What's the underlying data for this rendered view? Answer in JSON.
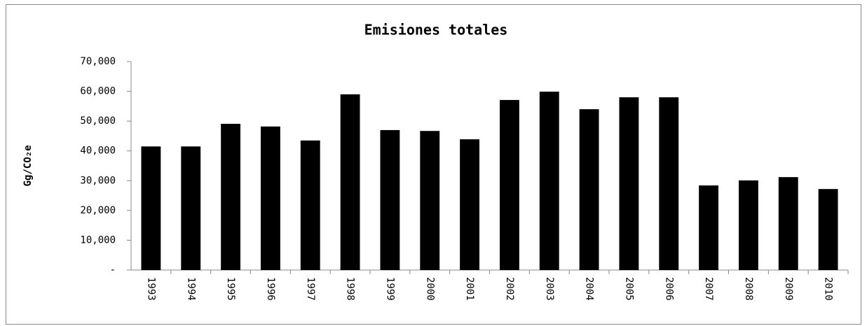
{
  "chart_data": {
    "type": "bar",
    "title": "Emisiones totales",
    "y_label": "Gg/CO₂e",
    "categories": [
      "1993",
      "1994",
      "1995",
      "1996",
      "1997",
      "1998",
      "1999",
      "2000",
      "2001",
      "2002",
      "2003",
      "2004",
      "2005",
      "2006",
      "2007",
      "2008",
      "2009",
      "2010"
    ],
    "values": [
      41500,
      41500,
      49100,
      48200,
      43500,
      59000,
      47000,
      46700,
      43900,
      57100,
      59900,
      54000,
      58000,
      58000,
      28400,
      30100,
      31200,
      27200
    ],
    "color": "#000000",
    "ylim": [
      0,
      70000
    ],
    "yticks": [
      {
        "value": 0,
        "label": "-"
      },
      {
        "value": 10000,
        "label": "10,000"
      },
      {
        "value": 20000,
        "label": "20,000"
      },
      {
        "value": 30000,
        "label": "30,000"
      },
      {
        "value": 40000,
        "label": "40,000"
      },
      {
        "value": 50000,
        "label": "50,000"
      },
      {
        "value": 60000,
        "label": "60,000"
      },
      {
        "value": 70000,
        "label": "70,000"
      }
    ],
    "grid": false
  }
}
